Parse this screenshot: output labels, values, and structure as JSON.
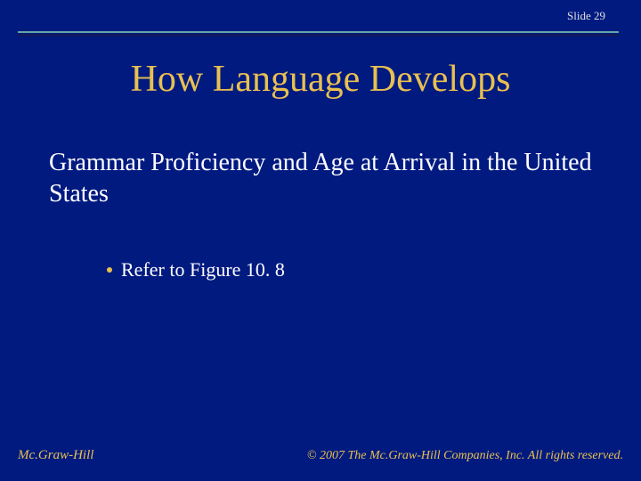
{
  "colors": {
    "background": "#001a80",
    "slide_number_text": "#e0e0e0",
    "divider_teal": "#5fa8a8",
    "divider_navy": "#0e1a5e",
    "title_text": "#e8c050",
    "subtitle_text": "#ffffff",
    "bullet_dot": "#e8c050",
    "bullet_text": "#ffffff",
    "footer_text": "#e8c050"
  },
  "header": {
    "slide_number_label": "Slide 29"
  },
  "title": "How Language Develops",
  "subtitle": "Grammar Proficiency and Age at Arrival in the United States",
  "bullets": [
    {
      "text": "Refer to Figure 10. 8"
    }
  ],
  "footer": {
    "left": "Mc.Graw-Hill",
    "right": "© 2007 The Mc.Graw-Hill Companies, Inc. All rights reserved."
  }
}
